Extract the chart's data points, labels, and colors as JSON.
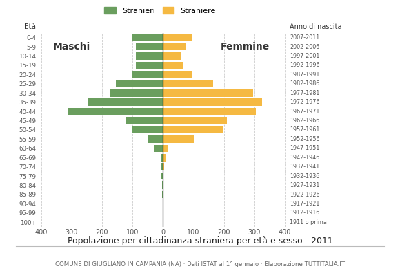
{
  "age_groups": [
    "100+",
    "95-99",
    "90-94",
    "85-89",
    "80-84",
    "75-79",
    "70-74",
    "65-69",
    "60-64",
    "55-59",
    "50-54",
    "45-49",
    "40-44",
    "35-39",
    "30-34",
    "25-29",
    "20-24",
    "15-19",
    "10-14",
    "5-9",
    "0-4"
  ],
  "birth_years": [
    "1911 o prima",
    "1912-1916",
    "1917-1921",
    "1922-1926",
    "1927-1931",
    "1932-1936",
    "1937-1941",
    "1942-1946",
    "1947-1951",
    "1952-1956",
    "1957-1961",
    "1962-1966",
    "1967-1971",
    "1972-1976",
    "1977-1981",
    "1982-1986",
    "1987-1991",
    "1992-1996",
    "1997-2001",
    "2002-2006",
    "2007-2011"
  ],
  "males": [
    0,
    0,
    0,
    2,
    3,
    5,
    5,
    8,
    30,
    50,
    100,
    120,
    310,
    248,
    175,
    155,
    100,
    90,
    90,
    90,
    100
  ],
  "females": [
    0,
    0,
    0,
    0,
    2,
    2,
    4,
    8,
    16,
    100,
    195,
    210,
    305,
    325,
    295,
    165,
    95,
    65,
    60,
    75,
    95
  ],
  "male_color": "#6a9e5e",
  "female_color": "#f5b942",
  "male_label": "Stranieri",
  "female_label": "Straniere",
  "title": "Popolazione per cittadinanza straniera per età e sesso - 2011",
  "subtitle": "COMUNE DI GIUGLIANO IN CAMPANIA (NA) · Dati ISTAT al 1° gennaio · Elaborazione TUTTITALIA.IT",
  "maschi_label": "Maschi",
  "femmine_label": "Femmine",
  "eta_label": "Età",
  "anno_label": "Anno di nascita",
  "xlim": 410,
  "xtick_values": [
    -400,
    -300,
    -200,
    -100,
    0,
    100,
    200,
    300,
    400
  ],
  "xtick_labels": [
    "400",
    "300",
    "200",
    "100",
    "0",
    "100",
    "200",
    "300",
    "400"
  ],
  "grid_color": "#cccccc"
}
